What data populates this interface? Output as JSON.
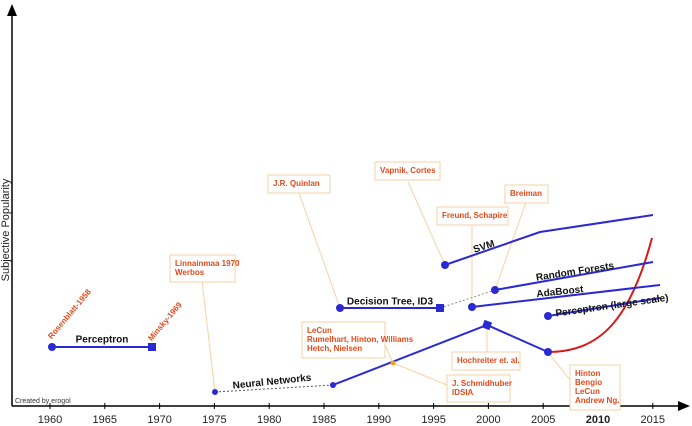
{
  "y_axis": {
    "label": "Subjective Popularity"
  },
  "x_axis": {
    "ticks": [
      "1960",
      "1965",
      "1970",
      "1975",
      "1980",
      "1985",
      "1990",
      "1995",
      "2000",
      "2005",
      "2010",
      "2015"
    ]
  },
  "methods": [
    {
      "label": "Perceptron"
    },
    {
      "label": "Neural Networks"
    },
    {
      "label": "Decision Tree, ID3"
    },
    {
      "label": "SVM"
    },
    {
      "label": "Random Forests"
    },
    {
      "label": "AdaBoost"
    },
    {
      "label": "Perceptron (large scale)"
    }
  ],
  "annotations": [
    {
      "lines": [
        "Rosenblatt-1958"
      ]
    },
    {
      "lines": [
        "Minsky-1969"
      ]
    },
    {
      "lines": [
        "J.R. Quinlan"
      ]
    },
    {
      "lines": [
        "Vapnik, Cortes"
      ]
    },
    {
      "lines": [
        "Breiman"
      ]
    },
    {
      "lines": [
        "Freund, Schapire"
      ]
    },
    {
      "lines": [
        "Linnainmaa 1970",
        "Werbos"
      ]
    },
    {
      "lines": [
        "LeCun",
        "Rumelhart, Hinton, Williams",
        "Hetch, Nielsen"
      ]
    },
    {
      "lines": [
        "Hochreiter et. al."
      ]
    },
    {
      "lines": [
        "J. Schmidhuber",
        "IDSIA"
      ]
    },
    {
      "lines": [
        "Hinton",
        "Bengio",
        "LeCun",
        "Andrew Ng."
      ]
    }
  ],
  "credit": "Created by erogol"
}
